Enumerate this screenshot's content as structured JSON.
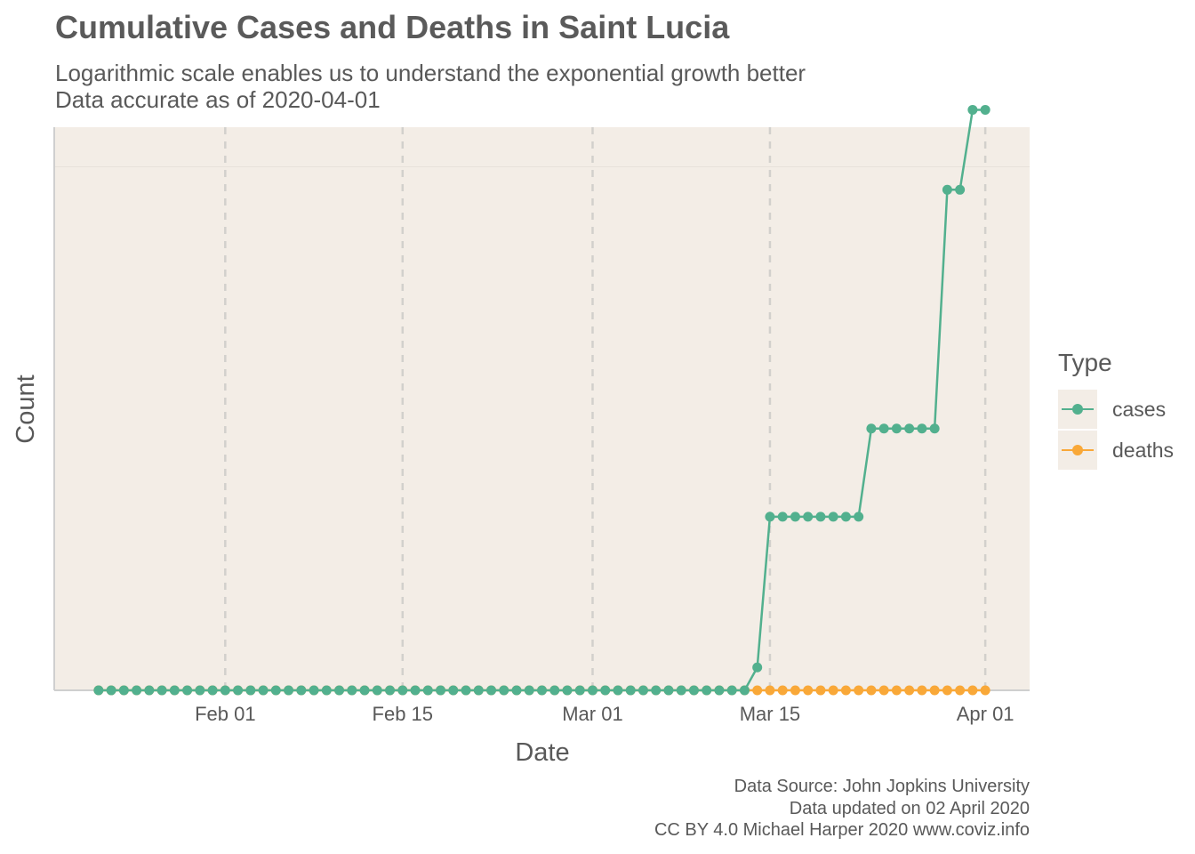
{
  "title": "Cumulative Cases and Deaths in Saint Lucia",
  "subtitle_line1": "Logarithmic scale enables us to understand the exponential growth better",
  "subtitle_line2": "Data accurate as of 2020-04-01",
  "caption": {
    "line1": "Data Source: John Jopkins University",
    "line2": "Data updated on 02 April 2020",
    "line3": "CC BY 4.0 Michael Harper 2020 www.coviz.info"
  },
  "legend": {
    "title": "Type",
    "items": [
      {
        "label": "cases",
        "color": "#52b08e"
      },
      {
        "label": "deaths",
        "color": "#f9a838"
      }
    ]
  },
  "chart_data": {
    "type": "line",
    "title": "Cumulative Cases and Deaths in Saint Lucia",
    "xlabel": "Date",
    "ylabel": "Count",
    "yscale": "log",
    "x_start": "2020-01-22",
    "x_end": "2020-04-01",
    "xlim_day_offsets": [
      -3.5,
      73.5
    ],
    "x_ticks": [
      {
        "label": "Feb 01",
        "day": 10
      },
      {
        "label": "Feb 15",
        "day": 24
      },
      {
        "label": "Mar 01",
        "day": 39
      },
      {
        "label": "Mar 15",
        "day": 53
      },
      {
        "label": "Apr 01",
        "day": 70
      }
    ],
    "ylim": [
      0.9,
      12
    ],
    "y_gridlines": [
      10
    ],
    "series": [
      {
        "name": "cases",
        "color": "#52b08e",
        "start_day": 0,
        "values": [
          0,
          0,
          0,
          0,
          0,
          0,
          0,
          0,
          0,
          0,
          0,
          0,
          0,
          0,
          0,
          0,
          0,
          0,
          0,
          0,
          0,
          0,
          0,
          0,
          0,
          0,
          0,
          0,
          0,
          0,
          0,
          0,
          0,
          0,
          0,
          0,
          0,
          0,
          0,
          0,
          0,
          0,
          0,
          0,
          0,
          0,
          0,
          0,
          0,
          0,
          0,
          0,
          1,
          2,
          2,
          2,
          2,
          2,
          2,
          2,
          2,
          3,
          3,
          3,
          3,
          3,
          3,
          9,
          9,
          13,
          13
        ]
      },
      {
        "name": "deaths",
        "color": "#f9a838",
        "start_day": 0,
        "values": [
          0,
          0,
          0,
          0,
          0,
          0,
          0,
          0,
          0,
          0,
          0,
          0,
          0,
          0,
          0,
          0,
          0,
          0,
          0,
          0,
          0,
          0,
          0,
          0,
          0,
          0,
          0,
          0,
          0,
          0,
          0,
          0,
          0,
          0,
          0,
          0,
          0,
          0,
          0,
          0,
          0,
          0,
          0,
          0,
          0,
          0,
          0,
          0,
          0,
          0,
          0,
          0,
          0,
          0,
          0,
          0,
          0,
          0,
          0,
          0,
          0,
          0,
          0,
          0,
          0,
          0,
          0,
          0,
          0,
          0,
          0
        ]
      }
    ]
  }
}
